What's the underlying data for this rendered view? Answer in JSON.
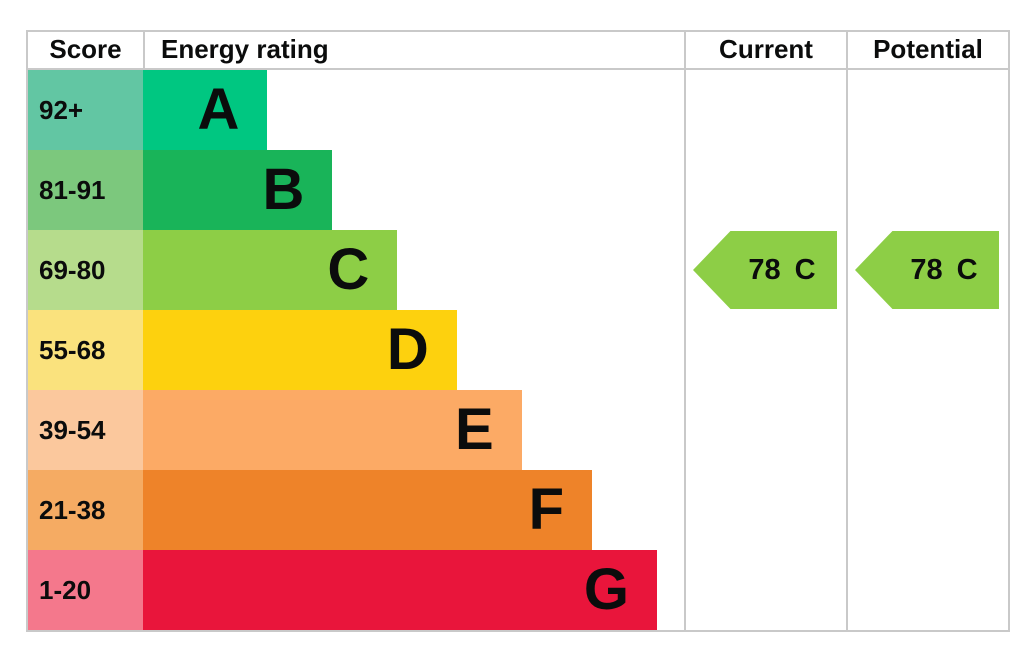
{
  "header": {
    "score": "Score",
    "energy_rating": "Energy rating",
    "current": "Current",
    "potential": "Potential"
  },
  "bands": [
    {
      "score": "92+",
      "letter": "A",
      "bar_color": "#00c781",
      "score_color": "#62c6a3",
      "width_pct": 23
    },
    {
      "score": "81-91",
      "letter": "B",
      "bar_color": "#19b459",
      "score_color": "#7cc87d",
      "width_pct": 35
    },
    {
      "score": "69-80",
      "letter": "C",
      "bar_color": "#8dce46",
      "score_color": "#b6dc8c",
      "width_pct": 47
    },
    {
      "score": "55-68",
      "letter": "D",
      "bar_color": "#fdd10e",
      "score_color": "#fae27d",
      "width_pct": 58
    },
    {
      "score": "39-54",
      "letter": "E",
      "bar_color": "#fcaa65",
      "score_color": "#fbc89d",
      "width_pct": 70
    },
    {
      "score": "21-38",
      "letter": "F",
      "bar_color": "#ee8329",
      "score_color": "#f5ab63",
      "width_pct": 83
    },
    {
      "score": "1-20",
      "letter": "G",
      "bar_color": "#e9153b",
      "score_color": "#f4788c",
      "width_pct": 95
    }
  ],
  "current": {
    "value": "78",
    "band": "C",
    "arrow_color": "#8dce46"
  },
  "potential": {
    "value": "78",
    "band": "C",
    "arrow_color": "#8dce46"
  },
  "colors": {
    "border": "#c9c9c9",
    "text": "#0b0c0c"
  },
  "chart_data": {
    "type": "bar",
    "title": "Energy rating",
    "categories": [
      "A",
      "B",
      "C",
      "D",
      "E",
      "F",
      "G"
    ],
    "score_ranges": [
      "92+",
      "81-91",
      "69-80",
      "55-68",
      "39-54",
      "21-38",
      "1-20"
    ],
    "bar_width_percent": [
      23,
      35,
      47,
      58,
      70,
      83,
      95
    ],
    "band_colors": [
      "#00c781",
      "#19b459",
      "#8dce46",
      "#fdd10e",
      "#fcaa65",
      "#ee8329",
      "#e9153b"
    ],
    "columns": [
      "Score",
      "Energy rating",
      "Current",
      "Potential"
    ],
    "current": {
      "score": 78,
      "band": "C"
    },
    "potential": {
      "score": 78,
      "band": "C"
    },
    "legend_position": "none",
    "grid": false
  }
}
